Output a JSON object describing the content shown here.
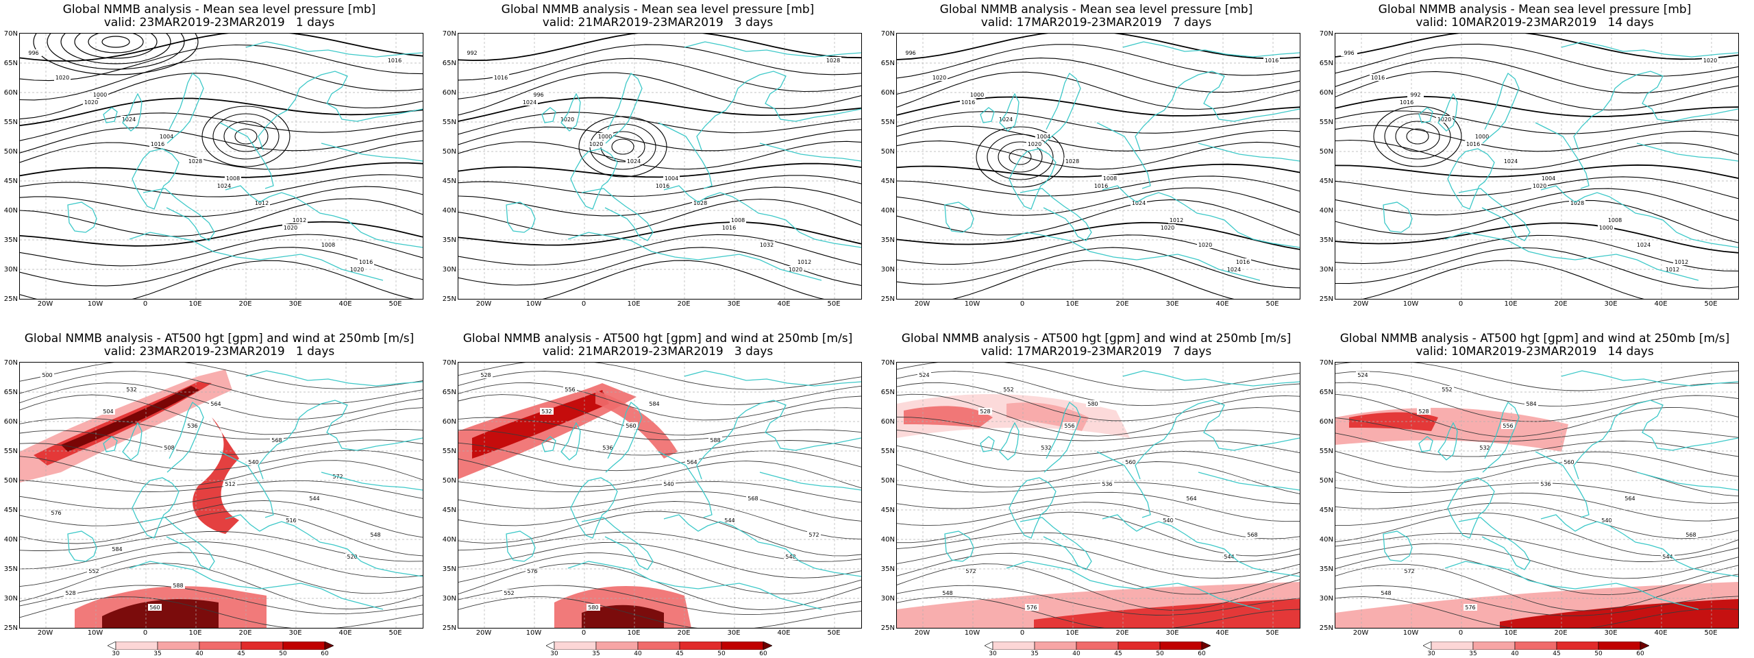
{
  "colors": {
    "coastline": "#3cc8c8",
    "isobar": "#000000",
    "grid": "#b0b0b0",
    "wind_scale": [
      "#ffffff",
      "#fcd6d6",
      "#f7a5a5",
      "#f06b6b",
      "#e12b2b",
      "#c00000",
      "#6e0000"
    ]
  },
  "axes": {
    "y_ticks": [
      "70N",
      "65N",
      "60N",
      "55N",
      "50N",
      "45N",
      "40N",
      "35N",
      "30N",
      "25N"
    ],
    "x_ticks": [
      "20W",
      "10W",
      "0",
      "10E",
      "20E",
      "30E",
      "40E",
      "50E"
    ]
  },
  "colorbar": {
    "labels": [
      "30",
      "35",
      "40",
      "45",
      "50",
      "60"
    ]
  },
  "rows": [
    {
      "name": "mslp",
      "title": "Global NMMB analysis - Mean sea level pressure [mb]",
      "panels": [
        {
          "valid": "valid: 23MAR2019-23MAR2019   1 days",
          "labels": [
            "996",
            "1000",
            "1004",
            "1008",
            "1012",
            "1016",
            "1020",
            "1024",
            "1028",
            "1012",
            "1008",
            "1016",
            "1020",
            "1016",
            "1024",
            "1020",
            "1020"
          ]
        },
        {
          "valid": "valid: 21MAR2019-23MAR2019   3 days",
          "labels": [
            "992",
            "996",
            "1000",
            "1004",
            "1008",
            "1012",
            "1016",
            "1020",
            "1024",
            "1028",
            "1032",
            "1028",
            "1024",
            "1020",
            "1016",
            "1016",
            "1020"
          ]
        },
        {
          "valid": "valid: 17MAR2019-23MAR2019   7 days",
          "labels": [
            "996",
            "1000",
            "1004",
            "1008",
            "1012",
            "1016",
            "1020",
            "1024",
            "1028",
            "1024",
            "1020",
            "1016",
            "1016",
            "1020",
            "1016",
            "1020",
            "1024"
          ]
        },
        {
          "valid": "valid: 10MAR2019-23MAR2019   14 days",
          "labels": [
            "996",
            "992",
            "1000",
            "1004",
            "1008",
            "1012",
            "1016",
            "1020",
            "1024",
            "1028",
            "1024",
            "1020",
            "1016",
            "1016",
            "1020",
            "1000",
            "1012"
          ]
        }
      ]
    },
    {
      "name": "at500",
      "title": "Global NMMB analysis - AT500 hgt [gpm] and wind at 250mb [m/s]",
      "panels": [
        {
          "valid": "valid: 23MAR2019-23MAR2019   1 days",
          "labels": [
            "500",
            "504",
            "508",
            "512",
            "516",
            "520",
            "528",
            "532",
            "536",
            "540",
            "544",
            "548",
            "552",
            "560",
            "564",
            "568",
            "572",
            "576",
            "584",
            "588"
          ]
        },
        {
          "valid": "valid: 21MAR2019-23MAR2019   3 days",
          "labels": [
            "528",
            "532",
            "536",
            "540",
            "544",
            "548",
            "552",
            "556",
            "560",
            "564",
            "568",
            "572",
            "576",
            "580",
            "584",
            "588"
          ]
        },
        {
          "valid": "valid: 17MAR2019-23MAR2019   7 days",
          "labels": [
            "524",
            "528",
            "532",
            "536",
            "540",
            "544",
            "548",
            "552",
            "556",
            "560",
            "564",
            "568",
            "572",
            "576",
            "580"
          ]
        },
        {
          "valid": "valid: 10MAR2019-23MAR2019   14 days",
          "labels": [
            "524",
            "528",
            "532",
            "536",
            "540",
            "544",
            "548",
            "552",
            "556",
            "560",
            "564",
            "568",
            "572",
            "576",
            "584"
          ]
        }
      ]
    }
  ]
}
